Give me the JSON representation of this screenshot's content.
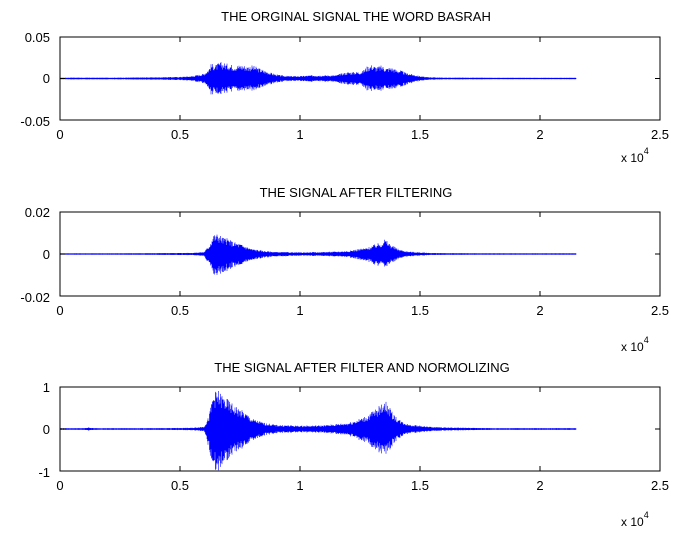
{
  "figure": {
    "background": "#ffffff",
    "signal_color": "#0000ff",
    "axis_color": "#000000"
  },
  "chart_data": [
    {
      "type": "line",
      "title": "THE ORGINAL SIGNAL  THE WORD BASRAH",
      "xlabel": "",
      "ylabel": "",
      "xlim": [
        0,
        25000
      ],
      "ylim": [
        -0.05,
        0.05
      ],
      "x_ticks": [
        "0",
        "0.5",
        "1",
        "1.5",
        "2",
        "2.5"
      ],
      "y_ticks": [
        "0.05",
        "0",
        "-0.05"
      ],
      "x_multiplier": {
        "base": "x 10",
        "exponent": "4"
      },
      "grid": false,
      "signal_end": 21500,
      "envelope": {
        "x": [
          0,
          500,
          1000,
          2000,
          3000,
          4000,
          5000,
          5500,
          6000,
          6200,
          6300,
          6500,
          6700,
          7000,
          7300,
          7600,
          7800,
          8000,
          8200,
          8500,
          8800,
          9000,
          9200,
          9500,
          10000,
          10500,
          11000,
          11500,
          11700,
          12000,
          12300,
          12600,
          12800,
          13000,
          13200,
          13400,
          13600,
          13800,
          14000,
          14200,
          14400,
          14700,
          15000,
          15200,
          15500,
          16000,
          17000,
          18000,
          19000,
          20000,
          21500
        ],
        "upper": [
          0.0008,
          0.0012,
          0.001,
          0.001,
          0.0012,
          0.0015,
          0.002,
          0.003,
          0.006,
          0.012,
          0.018,
          0.017,
          0.02,
          0.018,
          0.016,
          0.017,
          0.015,
          0.016,
          0.014,
          0.01,
          0.007,
          0.005,
          0.004,
          0.003,
          0.003,
          0.004,
          0.004,
          0.004,
          0.006,
          0.008,
          0.008,
          0.009,
          0.015,
          0.017,
          0.014,
          0.016,
          0.013,
          0.014,
          0.011,
          0.01,
          0.007,
          0.005,
          0.003,
          0.002,
          0.0015,
          0.001,
          0.001,
          0.0008,
          0.0008,
          0.0008,
          0.0008
        ],
        "lower": [
          -0.0008,
          -0.0012,
          -0.001,
          -0.001,
          -0.0012,
          -0.0015,
          -0.002,
          -0.003,
          -0.006,
          -0.014,
          -0.02,
          -0.018,
          -0.019,
          -0.017,
          -0.016,
          -0.016,
          -0.015,
          -0.015,
          -0.013,
          -0.01,
          -0.007,
          -0.005,
          -0.004,
          -0.003,
          -0.003,
          -0.004,
          -0.004,
          -0.004,
          -0.006,
          -0.008,
          -0.008,
          -0.009,
          -0.015,
          -0.016,
          -0.014,
          -0.015,
          -0.013,
          -0.014,
          -0.012,
          -0.01,
          -0.008,
          -0.005,
          -0.003,
          -0.002,
          -0.0015,
          -0.001,
          -0.001,
          -0.0008,
          -0.0008,
          -0.0008,
          -0.0008
        ]
      }
    },
    {
      "type": "line",
      "title": "THE  SIGNAL AFTER   FILTERING",
      "xlabel": "",
      "ylabel": "",
      "xlim": [
        0,
        25000
      ],
      "ylim": [
        -0.02,
        0.02
      ],
      "x_ticks": [
        "0",
        "0.5",
        "1",
        "1.5",
        "2",
        "2.5"
      ],
      "y_ticks": [
        "0.02",
        "0",
        "-0.02"
      ],
      "x_multiplier": {
        "base": "x 10",
        "exponent": "4"
      },
      "grid": false,
      "signal_end": 21500,
      "envelope": {
        "x": [
          0,
          2000,
          4000,
          5500,
          6000,
          6200,
          6400,
          6600,
          6800,
          7000,
          7200,
          7500,
          7800,
          8000,
          8500,
          9000,
          10000,
          11000,
          11500,
          12000,
          12500,
          12800,
          13000,
          13200,
          13400,
          13500,
          13600,
          13800,
          14000,
          14200,
          14500,
          15000,
          15500,
          16000,
          18000,
          21500
        ],
        "upper": [
          0.0003,
          0.0003,
          0.0004,
          0.0006,
          0.001,
          0.004,
          0.0095,
          0.0098,
          0.008,
          0.0075,
          0.006,
          0.005,
          0.0035,
          0.0025,
          0.0015,
          0.001,
          0.0008,
          0.001,
          0.0012,
          0.0015,
          0.0025,
          0.003,
          0.004,
          0.005,
          0.0055,
          0.0075,
          0.0065,
          0.0045,
          0.003,
          0.002,
          0.0012,
          0.0008,
          0.0005,
          0.0004,
          0.0003,
          0.0003
        ],
        "lower": [
          -0.0003,
          -0.0003,
          -0.0004,
          -0.0006,
          -0.001,
          -0.005,
          -0.0105,
          -0.0105,
          -0.009,
          -0.008,
          -0.0065,
          -0.0055,
          -0.004,
          -0.003,
          -0.0018,
          -0.0012,
          -0.0008,
          -0.001,
          -0.0012,
          -0.0016,
          -0.0028,
          -0.0035,
          -0.0045,
          -0.0055,
          -0.006,
          -0.0065,
          -0.006,
          -0.0045,
          -0.003,
          -0.002,
          -0.0012,
          -0.0008,
          -0.0005,
          -0.0004,
          -0.0003,
          -0.0003
        ]
      }
    },
    {
      "type": "line",
      "title": "THE  SIGNAL  AFTER  FILTER AND   NORMOLIZING",
      "xlabel": "",
      "ylabel": "",
      "xlim": [
        0,
        25000
      ],
      "ylim": [
        -1,
        1
      ],
      "x_ticks": [
        "0",
        "0.5",
        "1",
        "1.5",
        "2",
        "2.5"
      ],
      "y_ticks": [
        "1",
        "0",
        "-1"
      ],
      "x_multiplier": {
        "base": "x 10",
        "exponent": "4"
      },
      "grid": false,
      "signal_end": 21500,
      "envelope": {
        "x": [
          0,
          1000,
          1200,
          1400,
          2000,
          4000,
          5500,
          6000,
          6200,
          6400,
          6600,
          6800,
          7000,
          7200,
          7500,
          7800,
          8000,
          8500,
          9000,
          10000,
          11000,
          11500,
          12000,
          12500,
          12800,
          13000,
          13200,
          13400,
          13500,
          13600,
          13800,
          14000,
          14200,
          14500,
          15000,
          15500,
          16000,
          18000,
          21500
        ],
        "upper": [
          0.02,
          0.02,
          0.04,
          0.02,
          0.02,
          0.02,
          0.03,
          0.06,
          0.3,
          0.9,
          0.92,
          0.8,
          0.7,
          0.6,
          0.48,
          0.36,
          0.25,
          0.15,
          0.1,
          0.08,
          0.09,
          0.12,
          0.15,
          0.25,
          0.32,
          0.42,
          0.5,
          0.6,
          0.75,
          0.65,
          0.45,
          0.3,
          0.2,
          0.12,
          0.08,
          0.05,
          0.04,
          0.02,
          0.02
        ],
        "lower": [
          -0.02,
          -0.02,
          -0.04,
          -0.02,
          -0.02,
          -0.02,
          -0.03,
          -0.06,
          -0.45,
          -1.0,
          -1.0,
          -0.85,
          -0.72,
          -0.6,
          -0.5,
          -0.38,
          -0.28,
          -0.16,
          -0.1,
          -0.08,
          -0.09,
          -0.12,
          -0.16,
          -0.28,
          -0.34,
          -0.44,
          -0.52,
          -0.6,
          -0.66,
          -0.6,
          -0.45,
          -0.3,
          -0.2,
          -0.12,
          -0.08,
          -0.05,
          -0.04,
          -0.02,
          -0.02
        ]
      }
    }
  ]
}
